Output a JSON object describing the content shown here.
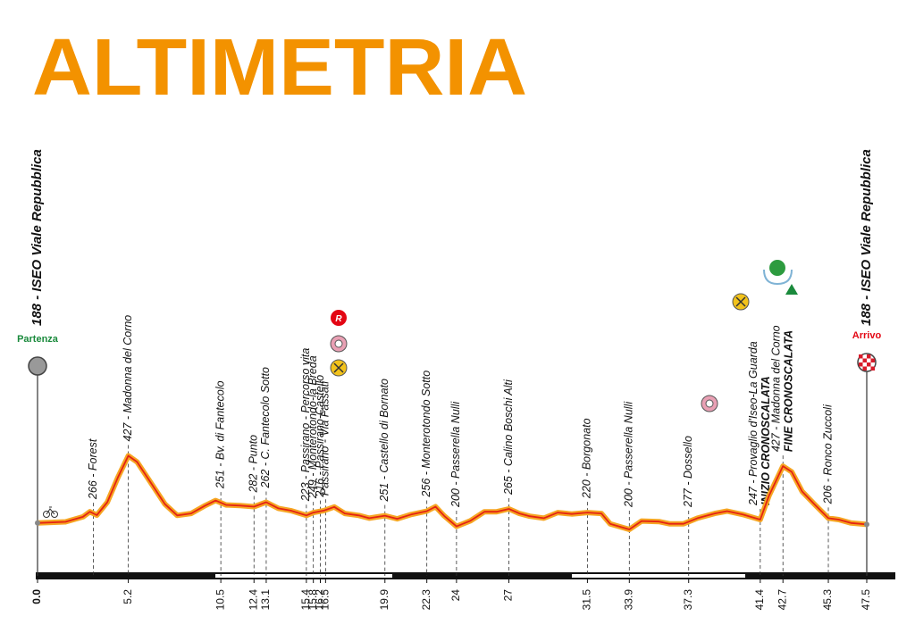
{
  "chart_data": {
    "type": "line",
    "title": "ALTIMETRIA",
    "title_color": "#f39200",
    "x": [
      0,
      1.6,
      2.6,
      3.0,
      3.4,
      4.0,
      4.6,
      5.2,
      5.7,
      6.5,
      7.3,
      8.0,
      8.8,
      9.6,
      10.2,
      10.8,
      11.6,
      12.4,
      13.1,
      13.8,
      14.5,
      15.4,
      15.8,
      16.4,
      17.0,
      17.6,
      18.4,
      19.0,
      19.9,
      20.6,
      21.4,
      22.3,
      22.8,
      23.3,
      24.0,
      24.8,
      25.6,
      26.3,
      27.0,
      27.6,
      28.2,
      29.0,
      29.8,
      30.6,
      31.5,
      32.3,
      32.8,
      33.9,
      34.6,
      35.6,
      36.2,
      37.0,
      37.8,
      38.8,
      39.5,
      40.4,
      41.4,
      41.9,
      42.7,
      43.2,
      43.8,
      44.5,
      45.3,
      45.9,
      46.6,
      47.5
    ],
    "series": [
      {
        "color": "#e42313",
        "halo": "#f6a623",
        "values": [
          188,
          192,
          210,
          228,
          216,
          262,
          350,
          427,
          405,
          330,
          255,
          215,
          222,
          250,
          268,
          252,
          250,
          246,
          262,
          240,
          232,
          215,
          225,
          232,
          245,
          222,
          215,
          205,
          214,
          203,
          218,
          230,
          246,
          213,
          176,
          196,
          228,
          228,
          238,
          222,
          212,
          205,
          225,
          220,
          225,
          222,
          185,
          165,
          195,
          193,
          185,
          185,
          205,
          222,
          230,
          218,
          200,
          285,
          390,
          370,
          300,
          255,
          205,
          200,
          188,
          183
        ]
      }
    ],
    "xlim": [
      0,
      47.5
    ],
    "ylim": [
      0,
      1500
    ],
    "xticks": [
      {
        "value": 0,
        "label": "0.0"
      },
      5.2,
      10.5,
      12.4,
      13.1,
      15.4,
      15.8,
      16.2,
      16.5,
      19.9,
      22.3,
      24.0,
      27.0,
      31.5,
      33.9,
      37.3,
      41.4,
      42.7,
      45.3,
      47.5
    ],
    "waypoints": [
      {
        "x": 3.2,
        "label": "266 - Forest"
      },
      {
        "x": 5.2,
        "label": "427 - Madonna del Corno"
      },
      {
        "x": 10.5,
        "label": "251 - Bv. di Fantecolo"
      },
      {
        "x": 12.4,
        "label": "282 - Punto"
      },
      {
        "x": 13.1,
        "label": "262 - C. Fantecolo Sotto"
      },
      {
        "x": 15.4,
        "label": "223 - Passirano - Percorso vita"
      },
      {
        "x": 15.8,
        "label": "249 - Monterotondo-la Breda"
      },
      {
        "x": 16.2,
        "label": "216 - Passirano-Castello"
      },
      {
        "x": 16.5,
        "label": "Passirano - Via Fassati"
      },
      {
        "x": 19.9,
        "label": "251 - Castello di Bornato"
      },
      {
        "x": 22.3,
        "label": "256 - Monterotondo Sotto"
      },
      {
        "x": 24.0,
        "label": "200 - Passerella Nulli"
      },
      {
        "x": 27.0,
        "label": "265 - Calino Boschi Alti"
      },
      {
        "x": 31.5,
        "label": "220 - Borgonato"
      },
      {
        "x": 33.9,
        "label": "200 - Passerella Nulli"
      },
      {
        "x": 37.3,
        "label": "277 - Dossello"
      },
      {
        "x": 41.4,
        "label": "247 - Provaglio d'Iseo-La Guarda",
        "note": "INIZIO CRONOSCALATA"
      },
      {
        "x": 42.7,
        "label": "427 - Madonna del Corno",
        "note": "FINE CRONOSCALATA"
      },
      {
        "x": 45.3,
        "label": "206 - Ronco Zuccoli"
      }
    ],
    "start": {
      "label": "188 - ISEO Viale Repubblica",
      "tag": "Partenza",
      "tag_color": "#1a8a3c"
    },
    "finish": {
      "label": "188 - ISEO Viale Repubblica",
      "tag": "Arrivo",
      "tag_color": "#e30613"
    }
  }
}
